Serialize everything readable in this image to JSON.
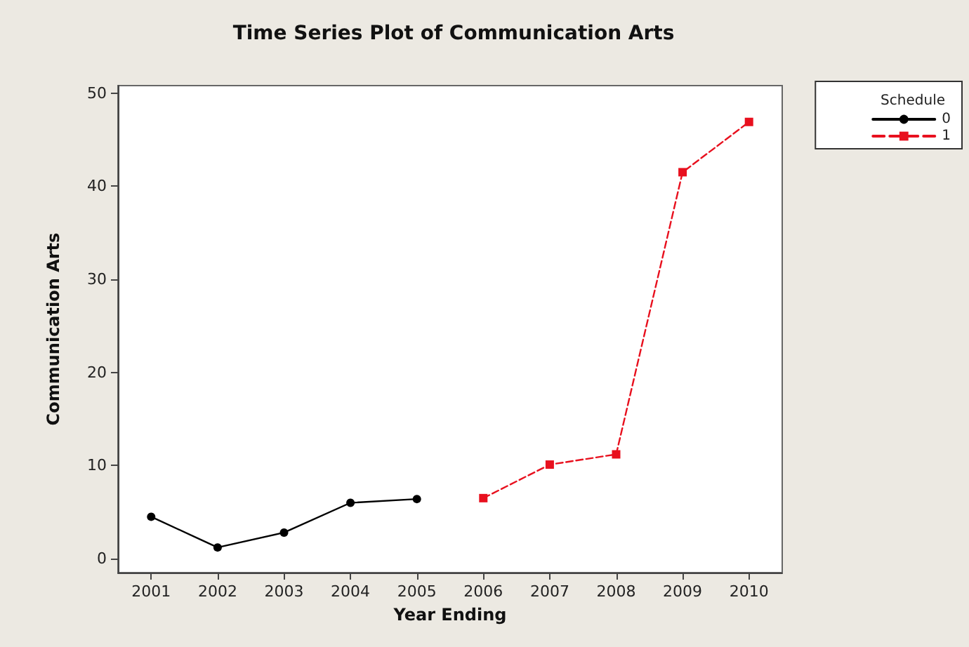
{
  "chart_data": {
    "type": "line",
    "title": "Time Series Plot of Communication Arts",
    "xlabel": "Year Ending",
    "ylabel": "Communication Arts",
    "categories": [
      "2001",
      "2002",
      "2003",
      "2004",
      "2005",
      "2006",
      "2007",
      "2008",
      "2009",
      "2010"
    ],
    "legend_title": "Schedule",
    "legend": "top right",
    "grid": false,
    "ylim": [
      -1.5,
      50.8
    ],
    "yticks": [
      0,
      10,
      20,
      30,
      40,
      50
    ],
    "series": [
      {
        "name": "0",
        "color": "#000000",
        "marker": "circle",
        "line_style": "solid",
        "values": [
          4.5,
          1.2,
          2.8,
          6.0,
          6.4,
          null,
          null,
          null,
          null,
          null
        ]
      },
      {
        "name": "1",
        "color": "#e8101e",
        "marker": "square",
        "line_style": "dashed",
        "values": [
          null,
          null,
          null,
          null,
          null,
          6.5,
          10.1,
          11.2,
          41.5,
          46.9
        ]
      }
    ]
  }
}
